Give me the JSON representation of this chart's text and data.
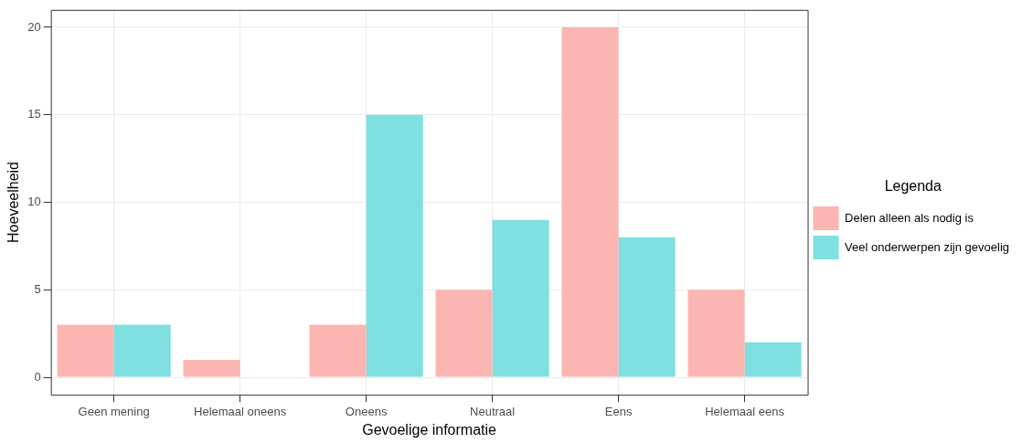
{
  "chart_data": {
    "type": "bar",
    "xlabel": "Gevoelige informatie",
    "ylabel": "Hoeveelheid",
    "legend_title": "Legenda",
    "categories": [
      "Geen mening",
      "Helemaal oneens",
      "Oneens",
      "Neutraal",
      "Eens",
      "Helemaal eens"
    ],
    "series": [
      {
        "name": "Delen alleen als nodig is",
        "color": "#fbb6b1",
        "values": [
          3,
          1,
          3,
          5,
          20,
          5
        ]
      },
      {
        "name": "Veel onderwerpen zijn gevoelig",
        "color": "#7fdfe1",
        "values": [
          3,
          null,
          15,
          9,
          8,
          2
        ]
      }
    ],
    "ylim": [
      -1,
      21
    ],
    "yticks": [
      0,
      5,
      10,
      15,
      20
    ],
    "grid": true,
    "legend": "right"
  }
}
